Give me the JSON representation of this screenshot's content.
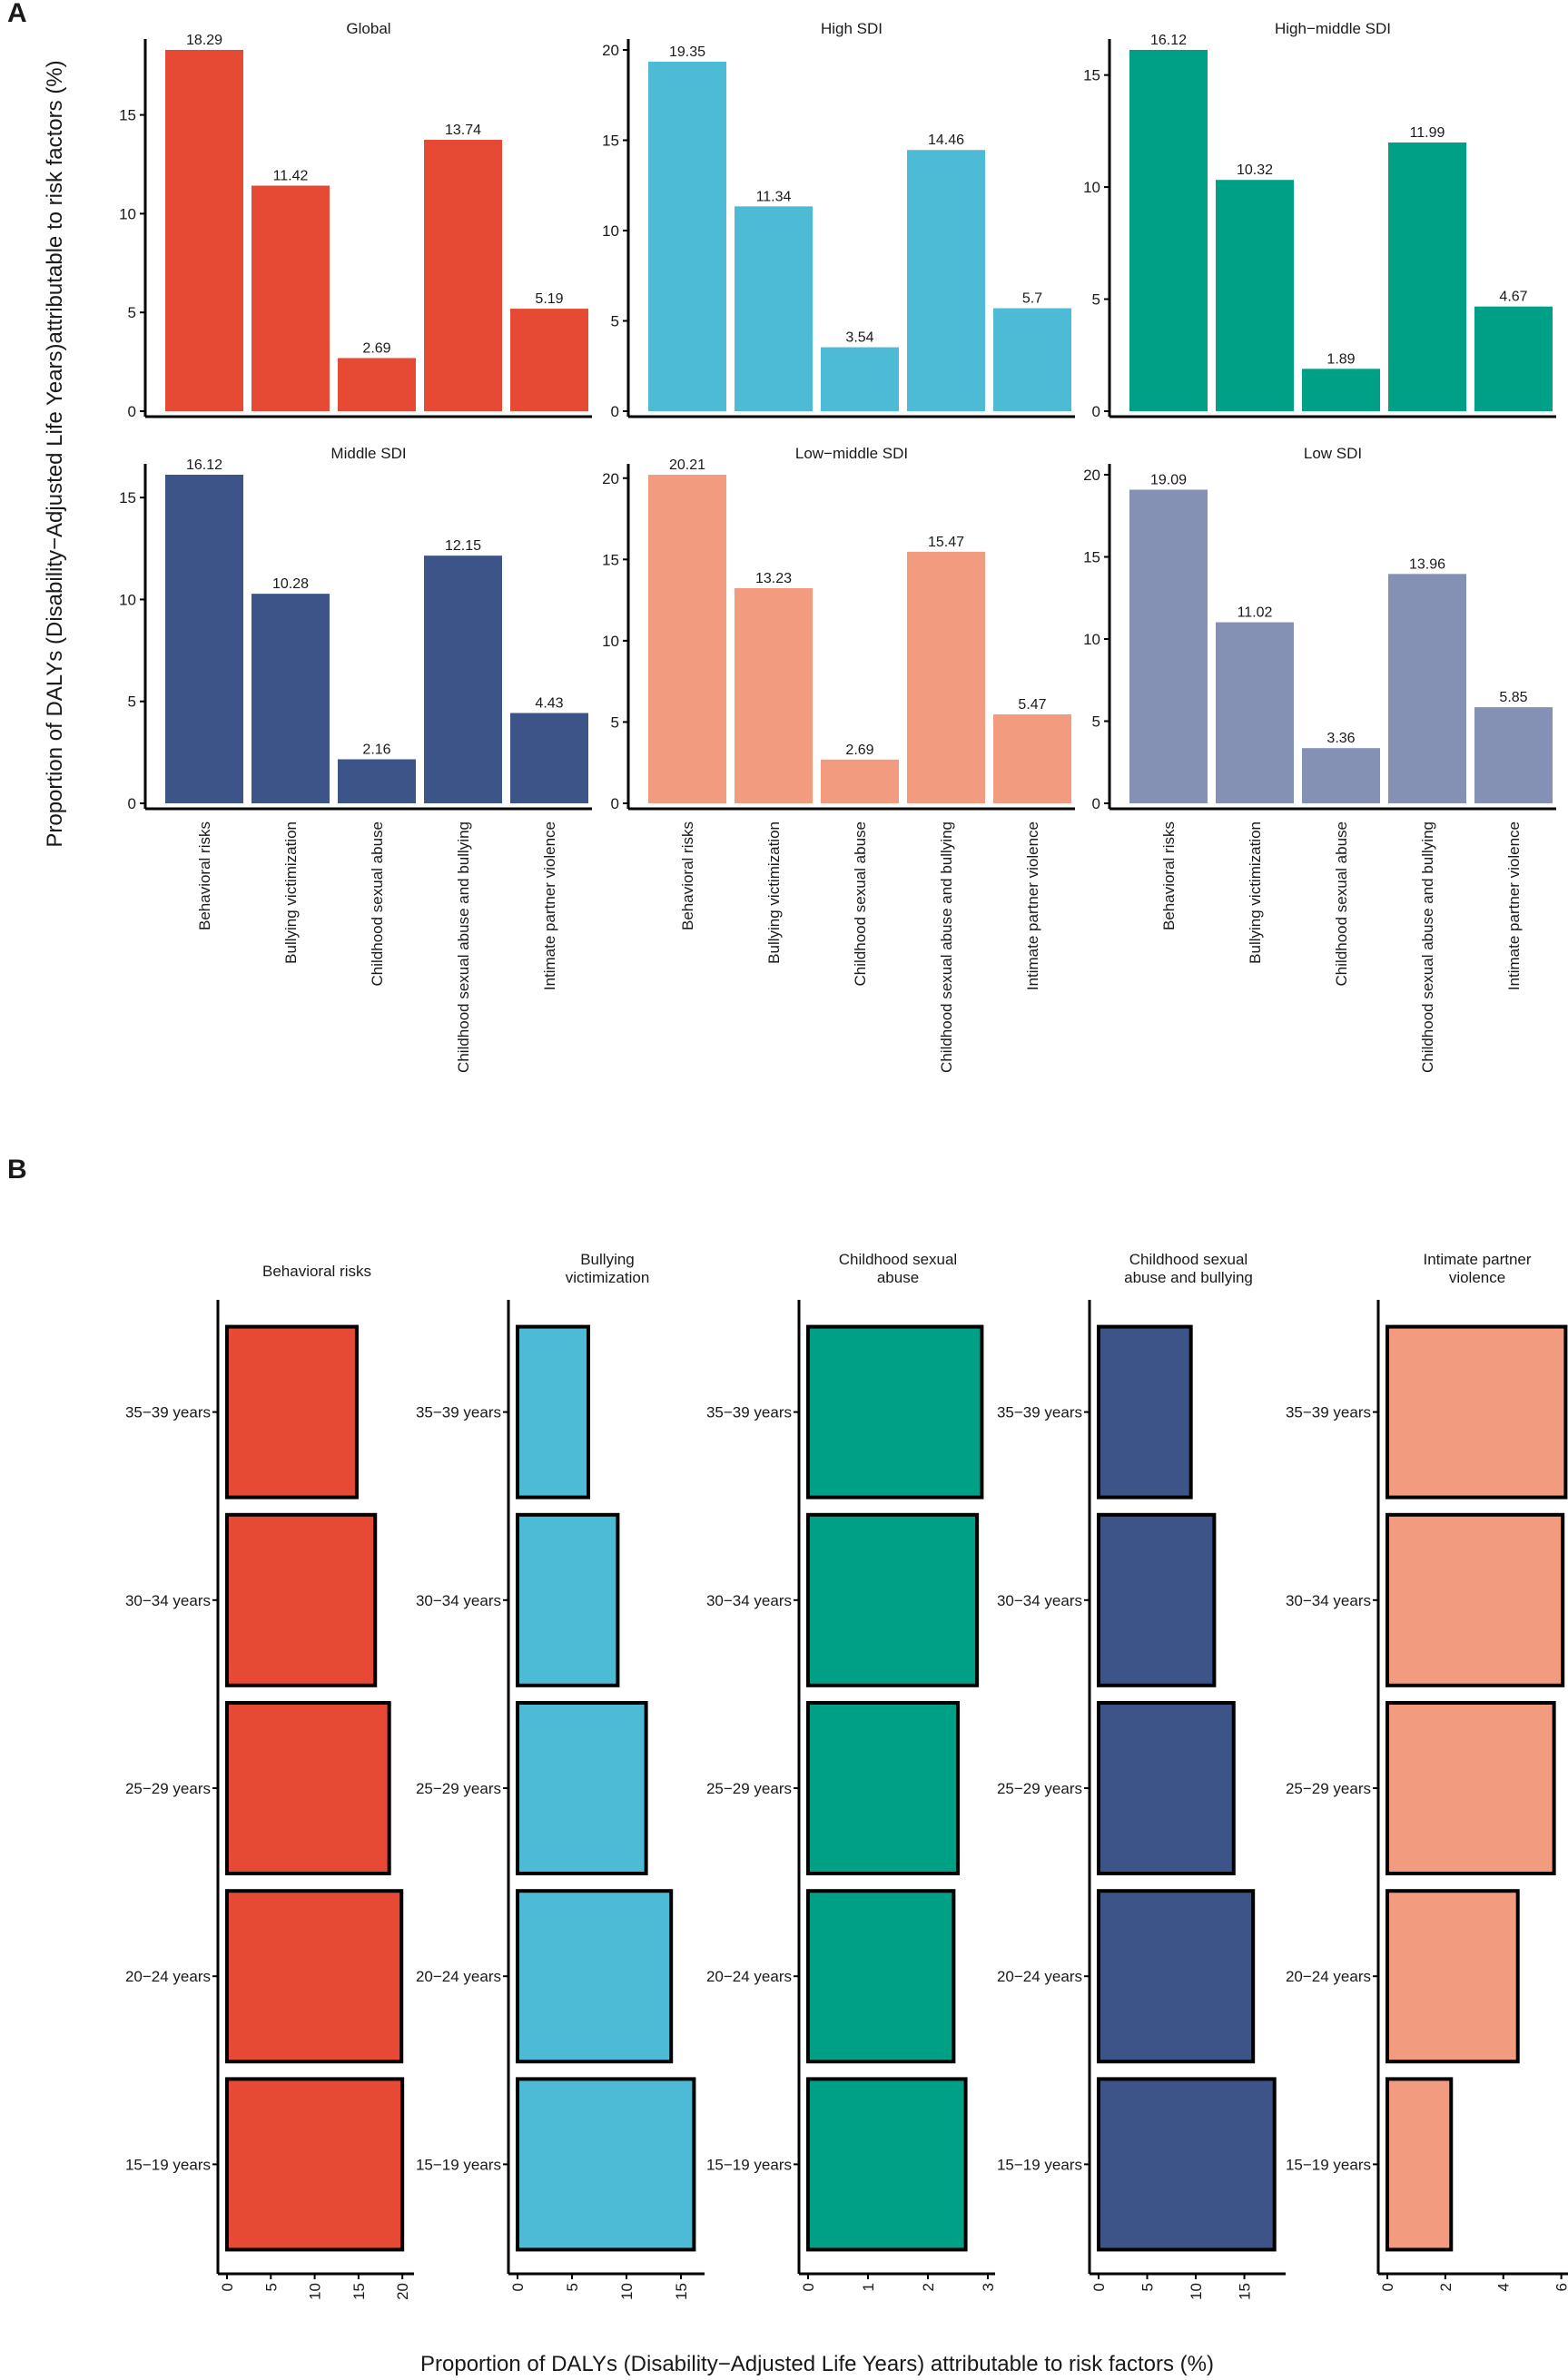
{
  "panel_labels": {
    "a": "A",
    "b": "B"
  },
  "colors": {
    "red": "#e64a35",
    "cyan": "#4dbbd6",
    "teal": "#00a087",
    "navy": "#3c5488",
    "salmon": "#f39b7f",
    "lavender": "#8491b4"
  },
  "chart_data": [
    {
      "panel": "A",
      "type": "bar",
      "ylabel": "Proportion of DALYs (Disability−Adjusted Life Years)attributable to risk factors (%)",
      "categories": [
        "Behavioral risks",
        "Bullying victimization",
        "Childhood sexual abuse",
        "Childhood sexual abuse and bullying",
        "Intimate partner violence"
      ],
      "facets": [
        {
          "title": "Global",
          "color": "#e64a35",
          "values": [
            18.29,
            11.42,
            2.69,
            13.74,
            5.19
          ],
          "labels": [
            "18.29",
            "11.42",
            "2.69",
            "13.74",
            "5.19"
          ],
          "ylim": [
            0,
            18.29
          ],
          "yticks": [
            0,
            5,
            10,
            15
          ]
        },
        {
          "title": "High SDI",
          "color": "#4dbbd6",
          "values": [
            19.35,
            11.34,
            3.54,
            14.46,
            5.7
          ],
          "labels": [
            "19.35",
            "11.34",
            "3.54",
            "14.46",
            "5.7"
          ],
          "ylim": [
            0,
            20
          ],
          "yticks": [
            0,
            5,
            10,
            15,
            20
          ]
        },
        {
          "title": "High−middle SDI",
          "color": "#00a087",
          "values": [
            16.12,
            10.32,
            1.89,
            11.99,
            4.67
          ],
          "labels": [
            "16.12",
            "10.32",
            "1.89",
            "11.99",
            "4.67"
          ],
          "ylim": [
            0,
            16.12
          ],
          "yticks": [
            0,
            5,
            10,
            15
          ]
        },
        {
          "title": "Middle SDI",
          "color": "#3c5488",
          "values": [
            16.12,
            10.28,
            2.16,
            12.15,
            4.43
          ],
          "labels": [
            "16.12",
            "10.28",
            "2.16",
            "12.15",
            "4.43"
          ],
          "ylim": [
            0,
            16.12
          ],
          "yticks": [
            0,
            5,
            10,
            15
          ]
        },
        {
          "title": "Low−middle SDI",
          "color": "#f39b7f",
          "values": [
            20.21,
            13.23,
            2.69,
            15.47,
            5.47
          ],
          "labels": [
            "20.21",
            "13.23",
            "2.69",
            "15.47",
            "5.47"
          ],
          "ylim": [
            0,
            20.21
          ],
          "yticks": [
            0,
            5,
            10,
            15,
            20
          ]
        },
        {
          "title": "Low SDI",
          "color": "#8491b4",
          "values": [
            19.09,
            11.02,
            3.36,
            13.96,
            5.85
          ],
          "labels": [
            "19.09",
            "11.02",
            "3.36",
            "13.96",
            "5.85"
          ],
          "ylim": [
            0,
            20
          ],
          "yticks": [
            0,
            5,
            10,
            15,
            20
          ]
        }
      ]
    },
    {
      "panel": "B",
      "type": "bar",
      "orientation": "horizontal",
      "xlabel": "Proportion of DALYs (Disability−Adjusted Life Years) attributable to risk factors (%)",
      "categories": [
        "35−39 years",
        "30−34 years",
        "25−29 years",
        "20−24 years",
        "15−19 years"
      ],
      "facets": [
        {
          "title_lines": [
            "Behavioral risks"
          ],
          "color": "#e64a35",
          "values": [
            14.8,
            16.9,
            18.5,
            19.9,
            20.0
          ],
          "xlim": [
            0,
            20.5
          ],
          "xticks": [
            0,
            5,
            10,
            15,
            20
          ]
        },
        {
          "title_lines": [
            "Bullying",
            "victimization"
          ],
          "color": "#4dbbd6",
          "values": [
            6.5,
            9.2,
            11.8,
            14.1,
            16.2
          ],
          "xlim": [
            0,
            16.5
          ],
          "xticks": [
            0,
            5,
            10,
            15
          ]
        },
        {
          "title_lines": [
            "Childhood sexual",
            "abuse"
          ],
          "color": "#00a087",
          "values": [
            2.9,
            2.82,
            2.5,
            2.43,
            2.63
          ],
          "xlim": [
            0,
            3
          ],
          "xticks": [
            0,
            1,
            2,
            3
          ]
        },
        {
          "title_lines": [
            "Childhood sexual",
            "abuse and bullying"
          ],
          "color": "#3c5488",
          "values": [
            9.5,
            11.9,
            13.9,
            15.9,
            18.1
          ],
          "xlim": [
            0,
            18.5
          ],
          "xticks": [
            0,
            5,
            10,
            15
          ]
        },
        {
          "title_lines": [
            "Intimate partner",
            "violence"
          ],
          "color": "#f39b7f",
          "values": [
            6.15,
            6.05,
            5.75,
            4.5,
            2.2
          ],
          "xlim": [
            0,
            6.2
          ],
          "xticks": [
            0,
            2,
            4,
            6
          ]
        }
      ]
    }
  ]
}
